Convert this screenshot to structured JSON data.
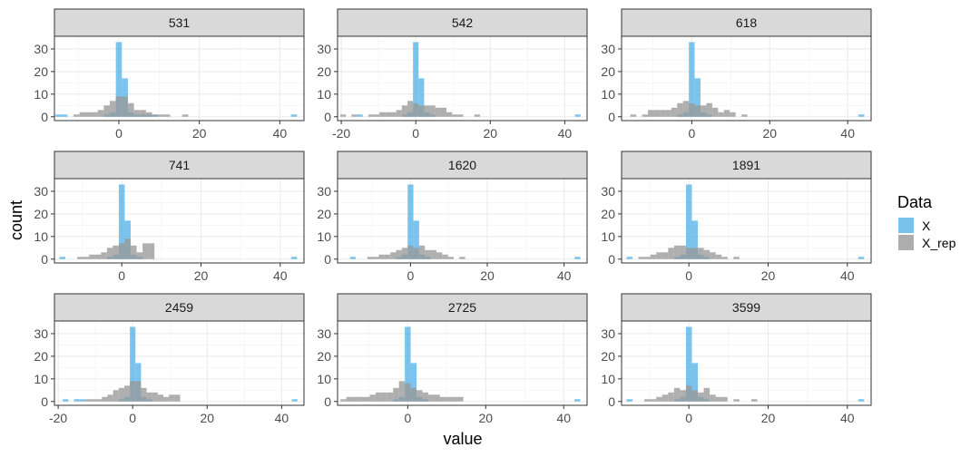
{
  "chart_data": {
    "type": "histogram",
    "xlabel": "value",
    "ylabel": "count",
    "bin_width": 1.5,
    "ylim": [
      0,
      35
    ],
    "y_ticks": [
      0,
      10,
      20,
      30
    ],
    "grid": true,
    "legend": {
      "title": "Data",
      "placement": "right",
      "entries": [
        {
          "name": "X",
          "color": "#56B4E9"
        },
        {
          "name": "X_rep",
          "color": "#999999"
        }
      ]
    },
    "panels": [
      {
        "label": "531",
        "xlim": [
          -16,
          46
        ],
        "x_ticks": [
          0,
          20,
          40
        ],
        "x_tick_labels": [
          "0",
          "20",
          "40"
        ],
        "X": [
          [
            -15,
            1
          ],
          [
            -13.5,
            1
          ],
          [
            -3,
            1
          ],
          [
            -1.5,
            2
          ],
          [
            0,
            33
          ],
          [
            1.5,
            17
          ],
          [
            3,
            2
          ],
          [
            4.5,
            1
          ],
          [
            6,
            1
          ],
          [
            7.5,
            1
          ],
          [
            9,
            1
          ],
          [
            43.5,
            1
          ]
        ],
        "X_rep": [
          [
            -10.5,
            1
          ],
          [
            -9,
            2
          ],
          [
            -7.5,
            2
          ],
          [
            -6,
            2
          ],
          [
            -4.5,
            3
          ],
          [
            -3,
            5
          ],
          [
            -1.5,
            7
          ],
          [
            0,
            9
          ],
          [
            1.5,
            9
          ],
          [
            3,
            6
          ],
          [
            4.5,
            3
          ],
          [
            6,
            3
          ],
          [
            7.5,
            2
          ],
          [
            9,
            1
          ],
          [
            10.5,
            1
          ],
          [
            12,
            1
          ],
          [
            16.5,
            1
          ]
        ]
      },
      {
        "label": "542",
        "xlim": [
          -21,
          46
        ],
        "x_ticks": [
          -20,
          0,
          20,
          40
        ],
        "x_tick_labels": [
          "-20",
          "0",
          "20",
          "40"
        ],
        "X": [
          [
            -15,
            1
          ],
          [
            -3,
            1
          ],
          [
            -1.5,
            2
          ],
          [
            0,
            33
          ],
          [
            1.5,
            17
          ],
          [
            3,
            2
          ],
          [
            4.5,
            1
          ],
          [
            43.5,
            1
          ]
        ],
        "X_rep": [
          [
            -19.5,
            1
          ],
          [
            -16.5,
            1
          ],
          [
            -12,
            1
          ],
          [
            -10.5,
            1
          ],
          [
            -9,
            2
          ],
          [
            -7.5,
            2
          ],
          [
            -6,
            2
          ],
          [
            -4.5,
            3
          ],
          [
            -3,
            5
          ],
          [
            -1.5,
            7
          ],
          [
            0,
            6
          ],
          [
            1.5,
            5
          ],
          [
            3,
            5
          ],
          [
            4.5,
            5
          ],
          [
            6,
            4
          ],
          [
            7.5,
            4
          ],
          [
            9,
            2
          ],
          [
            10.5,
            1
          ],
          [
            12,
            1
          ],
          [
            16.5,
            1
          ]
        ]
      },
      {
        "label": "618",
        "xlim": [
          -18,
          46
        ],
        "x_ticks": [
          0,
          20,
          40
        ],
        "x_tick_labels": [
          "0",
          "20",
          "40"
        ],
        "X": [
          [
            -3,
            1
          ],
          [
            -1.5,
            2
          ],
          [
            0,
            33
          ],
          [
            1.5,
            17
          ],
          [
            3,
            2
          ],
          [
            4.5,
            1
          ],
          [
            43.5,
            1
          ]
        ],
        "X_rep": [
          [
            -15,
            1
          ],
          [
            -12,
            1
          ],
          [
            -10.5,
            3
          ],
          [
            -9,
            3
          ],
          [
            -7.5,
            3
          ],
          [
            -6,
            3
          ],
          [
            -4.5,
            4
          ],
          [
            -3,
            6
          ],
          [
            -1.5,
            7
          ],
          [
            0,
            6
          ],
          [
            1.5,
            5
          ],
          [
            3,
            5
          ],
          [
            4.5,
            6
          ],
          [
            6,
            4
          ],
          [
            7.5,
            2
          ],
          [
            9,
            3
          ],
          [
            10.5,
            2
          ],
          [
            13.5,
            1
          ]
        ]
      },
      {
        "label": "741",
        "xlim": [
          -17,
          46
        ],
        "x_ticks": [
          0,
          20,
          40
        ],
        "x_tick_labels": [
          "0",
          "20",
          "40"
        ],
        "X": [
          [
            -15,
            1
          ],
          [
            -3,
            1
          ],
          [
            -1.5,
            2
          ],
          [
            0,
            33
          ],
          [
            1.5,
            17
          ],
          [
            3,
            2
          ],
          [
            4.5,
            1
          ],
          [
            43.5,
            1
          ]
        ],
        "X_rep": [
          [
            -10.5,
            1
          ],
          [
            -9,
            1
          ],
          [
            -7.5,
            2
          ],
          [
            -6,
            2
          ],
          [
            -4.5,
            3
          ],
          [
            -3,
            5
          ],
          [
            -1.5,
            6
          ],
          [
            0,
            7
          ],
          [
            1.5,
            9
          ],
          [
            3,
            6
          ],
          [
            4.5,
            3
          ],
          [
            6,
            7
          ],
          [
            7.5,
            7
          ]
        ]
      },
      {
        "label": "1620",
        "xlim": [
          -19,
          46
        ],
        "x_ticks": [
          0,
          20,
          40
        ],
        "x_tick_labels": [
          "0",
          "20",
          "40"
        ],
        "X": [
          [
            -15,
            1
          ],
          [
            -3,
            1
          ],
          [
            -1.5,
            2
          ],
          [
            0,
            33
          ],
          [
            1.5,
            17
          ],
          [
            3,
            2
          ],
          [
            4.5,
            1
          ],
          [
            43.5,
            1
          ]
        ],
        "X_rep": [
          [
            -10.5,
            1
          ],
          [
            -9,
            1
          ],
          [
            -7.5,
            2
          ],
          [
            -6,
            2
          ],
          [
            -4.5,
            3
          ],
          [
            -3,
            4
          ],
          [
            -1.5,
            5
          ],
          [
            0,
            6
          ],
          [
            1.5,
            5
          ],
          [
            3,
            6
          ],
          [
            4.5,
            4
          ],
          [
            6,
            4
          ],
          [
            7.5,
            3
          ],
          [
            9,
            2
          ],
          [
            10.5,
            1
          ],
          [
            13.5,
            1
          ]
        ]
      },
      {
        "label": "1891",
        "xlim": [
          -17,
          46
        ],
        "x_ticks": [
          0,
          20,
          40
        ],
        "x_tick_labels": [
          "0",
          "20",
          "40"
        ],
        "X": [
          [
            -15,
            1
          ],
          [
            -3,
            1
          ],
          [
            -1.5,
            2
          ],
          [
            0,
            33
          ],
          [
            1.5,
            17
          ],
          [
            3,
            2
          ],
          [
            4.5,
            1
          ],
          [
            43.5,
            1
          ]
        ],
        "X_rep": [
          [
            -12,
            1
          ],
          [
            -10.5,
            1
          ],
          [
            -9,
            2
          ],
          [
            -7.5,
            3
          ],
          [
            -6,
            3
          ],
          [
            -4.5,
            5
          ],
          [
            -3,
            6
          ],
          [
            -1.5,
            6
          ],
          [
            0,
            5
          ],
          [
            1.5,
            5
          ],
          [
            3,
            5
          ],
          [
            4.5,
            4
          ],
          [
            6,
            3
          ],
          [
            7.5,
            2
          ],
          [
            9,
            1
          ],
          [
            12,
            1
          ]
        ]
      },
      {
        "label": "2459",
        "xlim": [
          -21,
          46
        ],
        "x_ticks": [
          -20,
          0,
          20,
          40
        ],
        "x_tick_labels": [
          "-20",
          "0",
          "20",
          "40"
        ],
        "X": [
          [
            -18,
            1
          ],
          [
            -15,
            1
          ],
          [
            -13.5,
            1
          ],
          [
            -3,
            1
          ],
          [
            -1.5,
            2
          ],
          [
            0,
            33
          ],
          [
            1.5,
            17
          ],
          [
            3,
            2
          ],
          [
            4.5,
            1
          ],
          [
            43.5,
            1
          ]
        ],
        "X_rep": [
          [
            -12,
            1
          ],
          [
            -10.5,
            1
          ],
          [
            -9,
            1
          ],
          [
            -7.5,
            2
          ],
          [
            -6,
            3
          ],
          [
            -4.5,
            5
          ],
          [
            -3,
            6
          ],
          [
            -1.5,
            7
          ],
          [
            0,
            9
          ],
          [
            1.5,
            9
          ],
          [
            3,
            6
          ],
          [
            4.5,
            4
          ],
          [
            6,
            4
          ],
          [
            7.5,
            3
          ],
          [
            9,
            2
          ],
          [
            10.5,
            3
          ],
          [
            12,
            3
          ]
        ]
      },
      {
        "label": "2725",
        "xlim": [
          -18,
          46
        ],
        "x_ticks": [
          0,
          20,
          40
        ],
        "x_tick_labels": [
          "0",
          "20",
          "40"
        ],
        "X": [
          [
            -3,
            1
          ],
          [
            -1.5,
            2
          ],
          [
            0,
            33
          ],
          [
            1.5,
            17
          ],
          [
            3,
            2
          ],
          [
            4.5,
            1
          ],
          [
            43.5,
            1
          ]
        ],
        "X_rep": [
          [
            -16.5,
            1
          ],
          [
            -15,
            2
          ],
          [
            -13.5,
            2
          ],
          [
            -12,
            2
          ],
          [
            -10.5,
            2
          ],
          [
            -9,
            3
          ],
          [
            -7.5,
            4
          ],
          [
            -6,
            4
          ],
          [
            -4.5,
            4
          ],
          [
            -3,
            6
          ],
          [
            -1.5,
            9
          ],
          [
            0,
            8
          ],
          [
            1.5,
            6
          ],
          [
            3,
            5
          ],
          [
            4.5,
            4
          ],
          [
            6,
            3
          ],
          [
            7.5,
            3
          ],
          [
            9,
            2
          ],
          [
            10.5,
            2
          ],
          [
            12,
            2
          ],
          [
            13.5,
            2
          ]
        ]
      },
      {
        "label": "3599",
        "xlim": [
          -17,
          46
        ],
        "x_ticks": [
          0,
          20,
          40
        ],
        "x_tick_labels": [
          "0",
          "20",
          "40"
        ],
        "X": [
          [
            -15,
            1
          ],
          [
            -3,
            1
          ],
          [
            -1.5,
            2
          ],
          [
            0,
            33
          ],
          [
            1.5,
            17
          ],
          [
            3,
            2
          ],
          [
            4.5,
            1
          ],
          [
            43.5,
            1
          ]
        ],
        "X_rep": [
          [
            -10.5,
            1
          ],
          [
            -9,
            1
          ],
          [
            -7.5,
            2
          ],
          [
            -6,
            3
          ],
          [
            -4.5,
            4
          ],
          [
            -3,
            6
          ],
          [
            -1.5,
            5
          ],
          [
            0,
            7
          ],
          [
            1.5,
            5
          ],
          [
            3,
            4
          ],
          [
            4.5,
            6
          ],
          [
            6,
            3
          ],
          [
            7.5,
            2
          ],
          [
            9,
            2
          ],
          [
            12,
            1
          ],
          [
            16.5,
            1
          ]
        ]
      }
    ]
  }
}
